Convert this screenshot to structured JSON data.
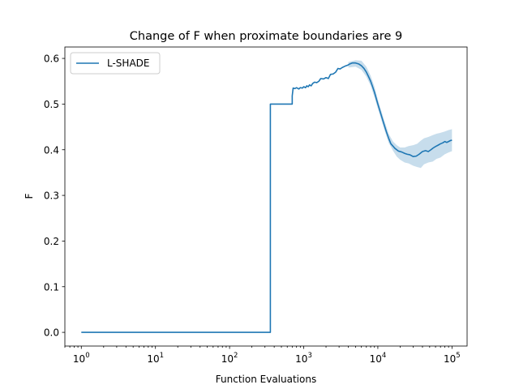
{
  "chart_data": {
    "type": "line",
    "title": "Change of F when proximate boundaries are 9",
    "xlabel": "Function Evaluations",
    "ylabel": "F",
    "xscale": "log",
    "xlim": [
      0.6,
      160000
    ],
    "ylim": [
      -0.03,
      0.625
    ],
    "x_ticks": [
      {
        "value": 1,
        "base": "10",
        "exp": "0"
      },
      {
        "value": 10,
        "base": "10",
        "exp": "1"
      },
      {
        "value": 100,
        "base": "10",
        "exp": "2"
      },
      {
        "value": 1000,
        "base": "10",
        "exp": "3"
      },
      {
        "value": 10000,
        "base": "10",
        "exp": "4"
      },
      {
        "value": 100000,
        "base": "10",
        "exp": "5"
      }
    ],
    "y_ticks": [
      "0.0",
      "0.1",
      "0.2",
      "0.3",
      "0.4",
      "0.5",
      "0.6"
    ],
    "grid": false,
    "legend": {
      "position": "upper-left"
    },
    "colors": {
      "line": "#1f77b4",
      "band": "#1f77b4"
    },
    "series": [
      {
        "name": "L-SHADE",
        "x": [
          1,
          10,
          100,
          355,
          355,
          700,
          700,
          720,
          760,
          800,
          860,
          900,
          960,
          1000,
          1060,
          1100,
          1150,
          1200,
          1260,
          1320,
          1400,
          1500,
          1600,
          1700,
          1850,
          2000,
          2150,
          2300,
          2500,
          2700,
          2900,
          3100,
          3300,
          3600,
          3900,
          4200,
          4500,
          5000,
          5500,
          6000,
          6500,
          7000,
          7500,
          8000,
          8500,
          9000,
          10000,
          11000,
          12000,
          13000,
          14000,
          15000,
          17000,
          19000,
          21000,
          23000,
          25000,
          27000,
          30000,
          33000,
          36000,
          40000,
          44000,
          48000,
          52000,
          56000,
          60000,
          65000,
          70000,
          75000,
          80000,
          85000,
          90000,
          95000,
          100000
        ],
        "y": [
          0.0,
          0.0,
          0.0,
          0.0,
          0.5,
          0.5,
          0.518,
          0.535,
          0.534,
          0.536,
          0.533,
          0.536,
          0.535,
          0.538,
          0.536,
          0.54,
          0.538,
          0.542,
          0.54,
          0.545,
          0.548,
          0.547,
          0.55,
          0.556,
          0.555,
          0.558,
          0.556,
          0.565,
          0.566,
          0.57,
          0.578,
          0.577,
          0.58,
          0.583,
          0.585,
          0.588,
          0.59,
          0.59,
          0.588,
          0.584,
          0.578,
          0.57,
          0.56,
          0.55,
          0.538,
          0.526,
          0.5,
          0.478,
          0.458,
          0.44,
          0.425,
          0.413,
          0.403,
          0.397,
          0.395,
          0.392,
          0.39,
          0.389,
          0.385,
          0.386,
          0.39,
          0.396,
          0.398,
          0.396,
          0.4,
          0.404,
          0.407,
          0.41,
          0.413,
          0.415,
          0.418,
          0.416,
          0.418,
          0.42,
          0.421
        ],
        "band_x": [
          4000,
          5000,
          6000,
          7000,
          8000,
          9000,
          10000,
          12000,
          14000,
          16000,
          18000,
          20000,
          23000,
          26000,
          30000,
          34000,
          38000,
          42000,
          48000,
          55000,
          62000,
          70000,
          80000,
          90000,
          100000
        ],
        "band_lower": [
          0.58,
          0.582,
          0.575,
          0.56,
          0.54,
          0.515,
          0.49,
          0.448,
          0.415,
          0.398,
          0.385,
          0.378,
          0.372,
          0.37,
          0.365,
          0.362,
          0.36,
          0.368,
          0.372,
          0.374,
          0.38,
          0.383,
          0.39,
          0.394,
          0.397
        ],
        "band_upper": [
          0.592,
          0.596,
          0.595,
          0.582,
          0.562,
          0.538,
          0.51,
          0.468,
          0.435,
          0.418,
          0.41,
          0.405,
          0.405,
          0.408,
          0.41,
          0.413,
          0.42,
          0.425,
          0.428,
          0.432,
          0.435,
          0.437,
          0.44,
          0.443,
          0.445
        ]
      }
    ]
  }
}
